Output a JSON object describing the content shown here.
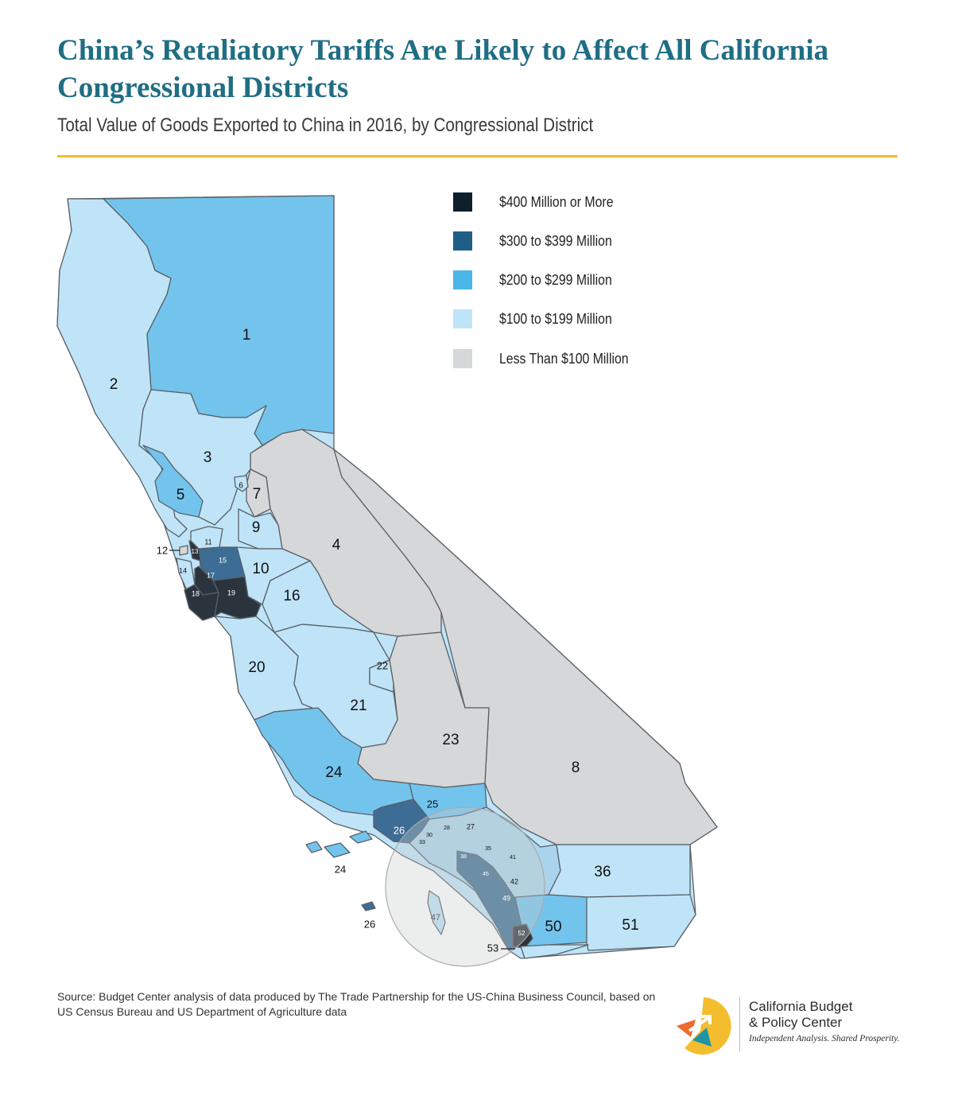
{
  "header": {
    "title": "China’s Retaliatory Tariffs Are Likely to Affect All California Congressional Districts",
    "subtitle": "Total Value of Goods Exported to China in 2016, by Congressional District"
  },
  "legend": {
    "items": [
      {
        "label": "$400 Million or More",
        "color": "#0d1f2b"
      },
      {
        "label": "$300 to $399 Million",
        "color": "#1f5f86"
      },
      {
        "label": "$200 to $299 Million",
        "color": "#4bb6e8"
      },
      {
        "label": "$100 to $199 Million",
        "color": "#bfe4f8"
      },
      {
        "label": "Less Than $100 Million",
        "color": "#d6d7d9"
      }
    ]
  },
  "colors": {
    "title": "#1f6e84",
    "rule": "#f3bd2d",
    "outline": "#5a5f66",
    "inset": "#c8cacc"
  },
  "districts": [
    {
      "id": "1",
      "category": "$200 to $299 Million"
    },
    {
      "id": "2",
      "category": "$100 to $199 Million"
    },
    {
      "id": "3",
      "category": "$100 to $199 Million"
    },
    {
      "id": "4",
      "category": "Less Than $100 Million"
    },
    {
      "id": "5",
      "category": "$200 to $299 Million"
    },
    {
      "id": "6",
      "category": "$100 to $199 Million"
    },
    {
      "id": "7",
      "category": "Less Than $100 Million"
    },
    {
      "id": "8",
      "category": "Less Than $100 Million"
    },
    {
      "id": "9",
      "category": "$100 to $199 Million"
    },
    {
      "id": "10",
      "category": "$100 to $199 Million"
    },
    {
      "id": "11",
      "category": "$100 to $199 Million"
    },
    {
      "id": "12",
      "category": "Less Than $100 Million"
    },
    {
      "id": "13",
      "category": "$400 Million or More"
    },
    {
      "id": "14",
      "category": "$100 to $199 Million"
    },
    {
      "id": "15",
      "category": "$300 to $399 Million"
    },
    {
      "id": "16",
      "category": "$100 to $199 Million"
    },
    {
      "id": "17",
      "category": "$400 Million or More"
    },
    {
      "id": "18",
      "category": "$400 Million or More"
    },
    {
      "id": "19",
      "category": "$400 Million or More"
    },
    {
      "id": "20",
      "category": "$100 to $199 Million"
    },
    {
      "id": "21",
      "category": "$100 to $199 Million"
    },
    {
      "id": "22",
      "category": "$100 to $199 Million"
    },
    {
      "id": "23",
      "category": "Less Than $100 Million"
    },
    {
      "id": "24",
      "category": "$200 to $299 Million"
    },
    {
      "id": "25",
      "category": "$200 to $299 Million"
    },
    {
      "id": "26",
      "category": "$300 to $399 Million"
    },
    {
      "id": "36",
      "category": "$100 to $199 Million"
    },
    {
      "id": "50",
      "category": "$200 to $299 Million"
    },
    {
      "id": "51",
      "category": "$100 to $199 Million"
    },
    {
      "id": "52",
      "category": "$400 Million or More"
    }
  ],
  "map_labels": {
    "d1": "1",
    "d2": "2",
    "d3": "3",
    "d4": "4",
    "d5": "5",
    "d6": "6",
    "d7": "7",
    "d8": "8",
    "d9": "9",
    "d10": "10",
    "d11": "11",
    "d12": "12",
    "d13": "13",
    "d14": "14",
    "d15": "15",
    "d16": "16",
    "d17": "17",
    "d18": "18",
    "d19": "19",
    "d20": "20",
    "d21": "21",
    "d22": "22",
    "d23": "23",
    "d24": "24",
    "d24_islands": "24",
    "d25": "25",
    "d26": "26",
    "d26_islands": "26",
    "d27": "27",
    "d28": "28",
    "d30": "30",
    "d33": "33",
    "d35": "35",
    "d38": "38",
    "d41": "41",
    "d42": "42",
    "d45": "45",
    "d47": "47",
    "d49": "49",
    "d50": "50",
    "d51": "51",
    "d52": "52",
    "d53": "53",
    "d36": "36"
  },
  "source": "Source: Budget Center analysis of data produced by The Trade Partnership for the US-China Business Council, based on US Census Bureau and US Department of Agriculture data",
  "logo": {
    "name_line1": "California Budget",
    "name_line2": "& Policy Center",
    "tagline": "Independent Analysis. Shared Prosperity."
  }
}
